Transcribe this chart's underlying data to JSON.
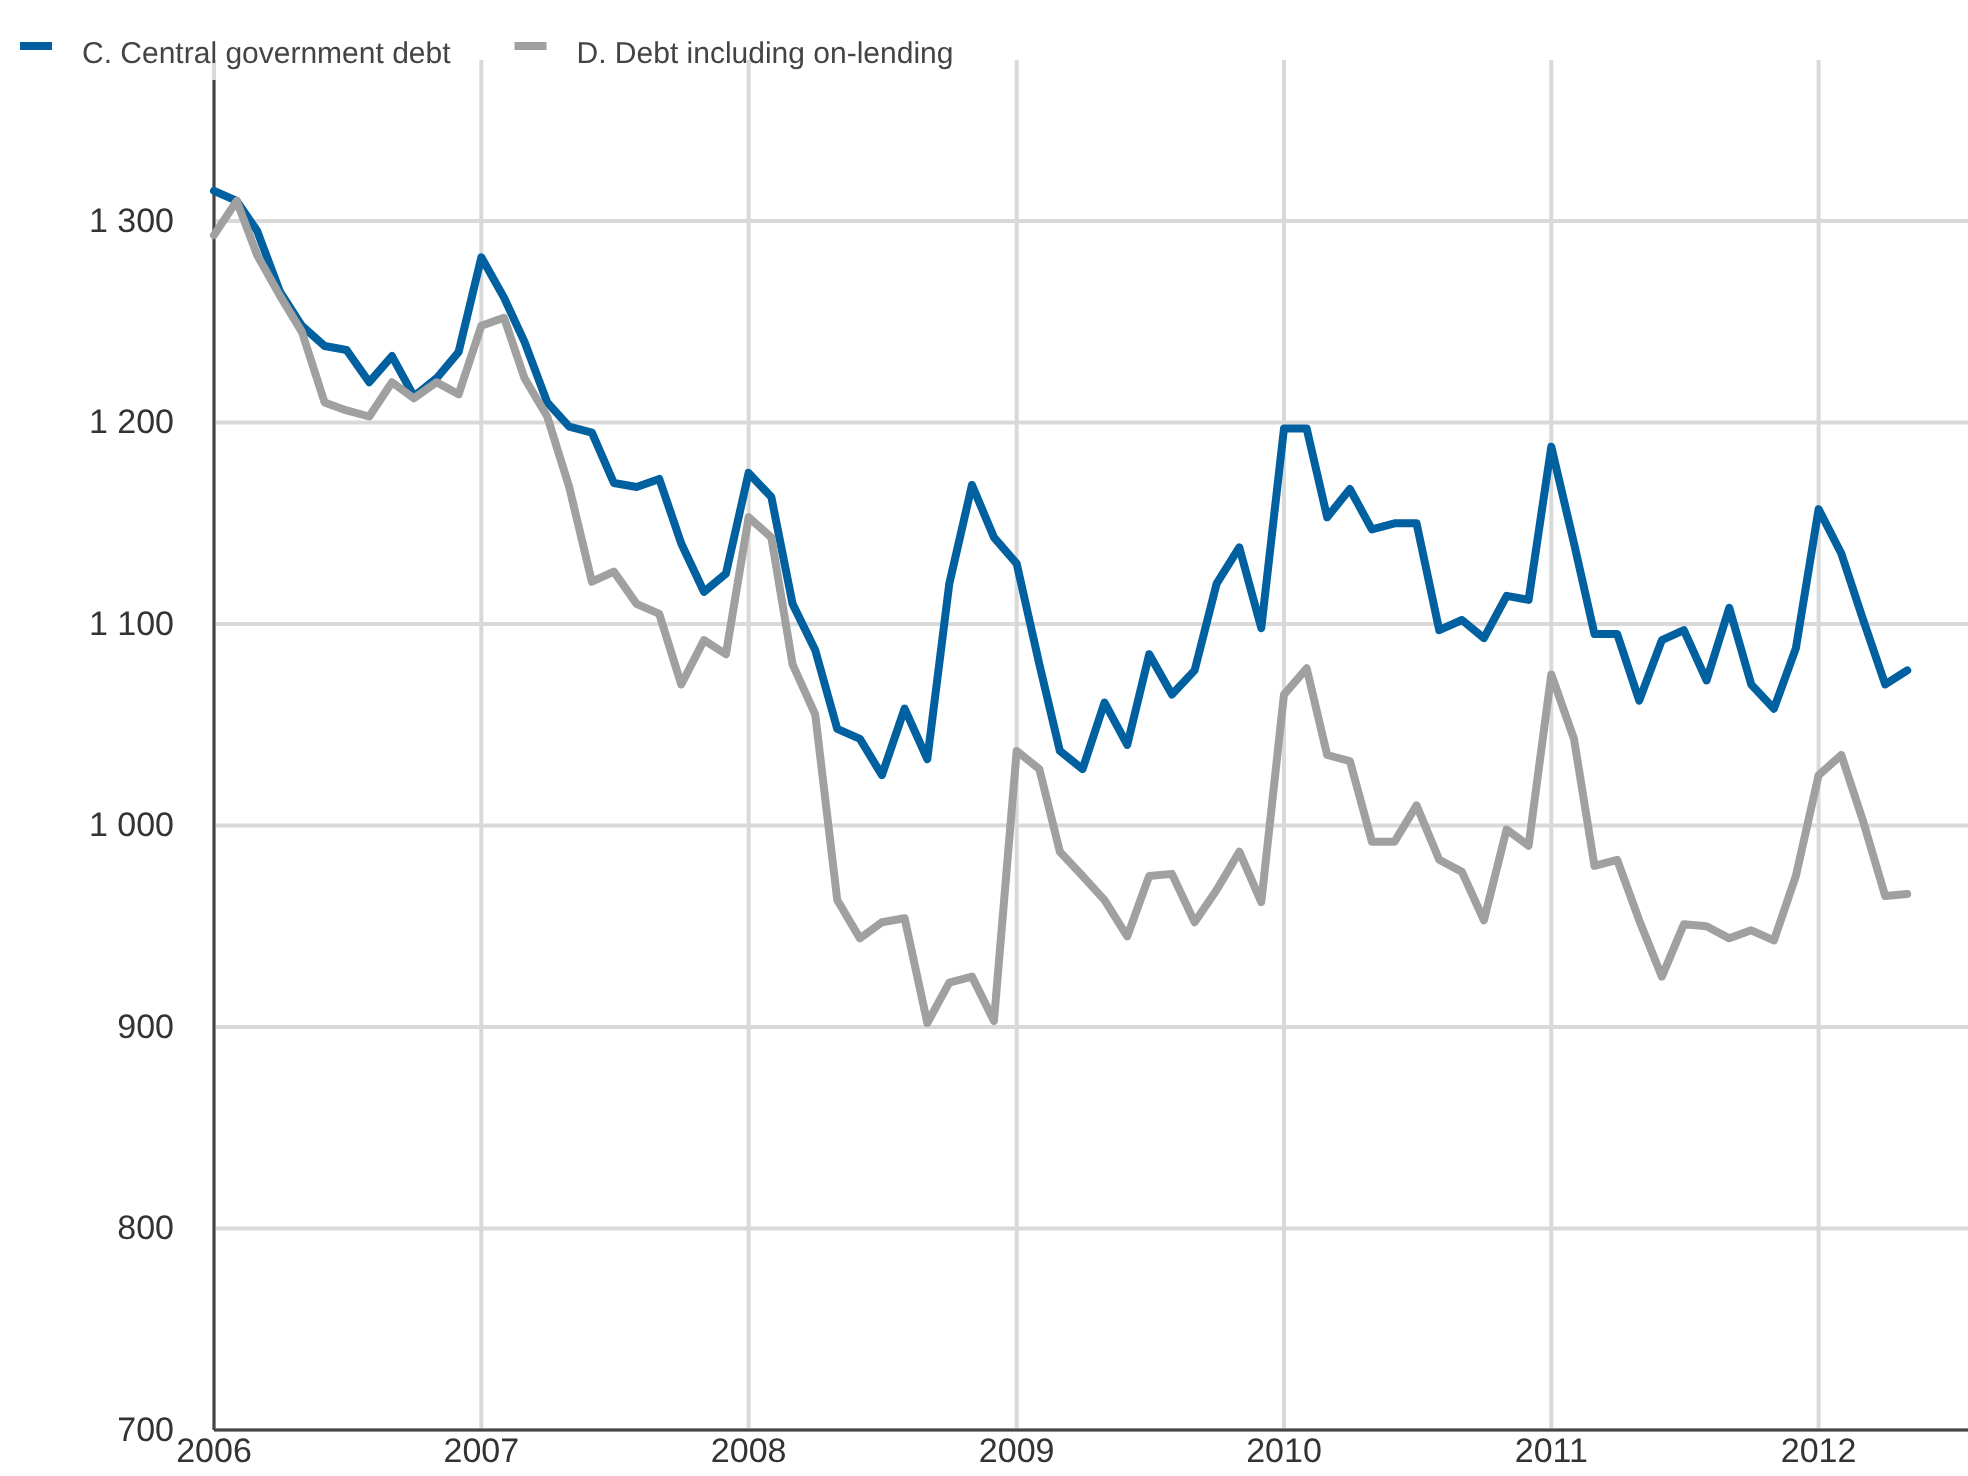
{
  "chart_data": {
    "type": "line",
    "legend": "top left",
    "grid": true,
    "marker": "none",
    "line_style": "solid",
    "x": [
      "2006-01",
      "2006-02",
      "2006-03",
      "2006-04",
      "2006-05",
      "2006-06",
      "2006-07",
      "2006-08",
      "2006-09",
      "2006-10",
      "2006-11",
      "2006-12",
      "2007-01",
      "2007-02",
      "2007-03",
      "2007-04",
      "2007-05",
      "2007-06",
      "2007-07",
      "2007-08",
      "2007-09",
      "2007-10",
      "2007-11",
      "2007-12",
      "2008-01",
      "2008-02",
      "2008-03",
      "2008-04",
      "2008-05",
      "2008-06",
      "2008-07",
      "2008-08",
      "2008-09",
      "2008-10",
      "2008-11",
      "2008-12",
      "2009-01",
      "2009-02",
      "2009-03",
      "2009-04",
      "2009-05",
      "2009-06",
      "2009-07",
      "2009-08",
      "2009-09",
      "2009-10",
      "2009-11",
      "2009-12",
      "2010-01",
      "2010-02",
      "2010-03",
      "2010-04",
      "2010-05",
      "2010-06",
      "2010-07",
      "2010-08",
      "2010-09",
      "2010-10",
      "2010-11",
      "2010-12",
      "2011-01",
      "2011-02",
      "2011-03",
      "2011-04",
      "2011-05",
      "2011-06",
      "2011-07",
      "2011-08",
      "2011-09",
      "2011-10",
      "2011-11",
      "2011-12",
      "2012-01",
      "2012-02",
      "2012-03",
      "2012-04",
      "2012-05"
    ],
    "xlim": [
      "2006-01",
      "2012-07-23"
    ],
    "xticks": [
      {
        "value": "2006",
        "label": "2006"
      },
      {
        "value": "2007",
        "label": "2007"
      },
      {
        "value": "2008",
        "label": "2008"
      },
      {
        "value": "2009",
        "label": "2009"
      },
      {
        "value": "2010",
        "label": "2010"
      },
      {
        "value": "2011",
        "label": "2011"
      },
      {
        "value": "2012",
        "label": "2012"
      }
    ],
    "ylim": [
      700,
      1370
    ],
    "yticks": [
      {
        "value": 700,
        "label": "700"
      },
      {
        "value": 800,
        "label": "800"
      },
      {
        "value": 900,
        "label": "900"
      },
      {
        "value": 1000,
        "label": "1 000"
      },
      {
        "value": 1100,
        "label": "1 100"
      },
      {
        "value": 1200,
        "label": "1 200"
      },
      {
        "value": 1300,
        "label": "1 300"
      }
    ],
    "series": [
      {
        "name": "C. Central government debt",
        "color": "#0060a0",
        "values": [
          1315,
          1310,
          1295,
          1265,
          1248,
          1238,
          1236,
          1220,
          1233,
          1213,
          1222,
          1235,
          1282,
          1262,
          1240,
          1210,
          1198,
          1195,
          1170,
          1168,
          1172,
          1140,
          1116,
          1125,
          1175,
          1163,
          1110,
          1087,
          1048,
          1043,
          1025,
          1058,
          1033,
          1120,
          1169,
          1143,
          1130,
          1080,
          1037,
          1028,
          1061,
          1040,
          1085,
          1065,
          1077,
          1120,
          1138,
          1098,
          1197,
          1197,
          1153,
          1167,
          1147,
          1150,
          1150,
          1097,
          1102,
          1093,
          1114,
          1112,
          1188,
          1140,
          1095,
          1095,
          1062,
          1092,
          1097,
          1072,
          1108,
          1070,
          1058,
          1088,
          1157,
          1135,
          1103,
          1070,
          1077
        ]
      },
      {
        "name": "D. Debt including on-lending",
        "color": "#a0a0a0",
        "values": [
          1293,
          1310,
          1283,
          1263,
          1245,
          1210,
          1206,
          1203,
          1220,
          1212,
          1220,
          1214,
          1248,
          1252,
          1222,
          1203,
          1168,
          1121,
          1126,
          1110,
          1105,
          1070,
          1092,
          1085,
          1153,
          1143,
          1080,
          1055,
          963,
          944,
          952,
          954,
          902,
          922,
          925,
          903,
          1037,
          1028,
          987,
          975,
          963,
          945,
          975,
          976,
          952,
          968,
          987,
          962,
          1065,
          1078,
          1035,
          1032,
          992,
          992,
          1010,
          983,
          977,
          953,
          998,
          990,
          1075,
          1043,
          980,
          983,
          953,
          925,
          951,
          950,
          944,
          948,
          943,
          975,
          1025,
          1035,
          1003,
          965,
          966
        ]
      }
    ]
  }
}
